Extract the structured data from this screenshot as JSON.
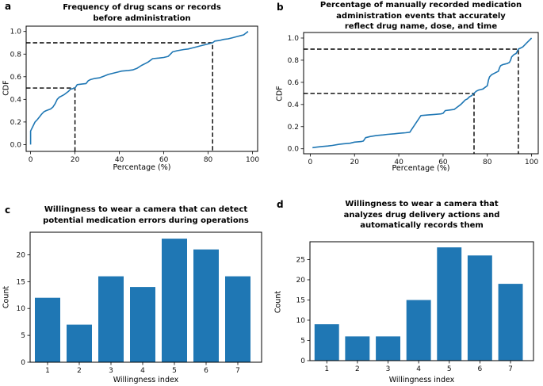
{
  "figure": {
    "background": "#ffffff",
    "accent_color": "#1f77b4",
    "guide_color": "#000000"
  },
  "chart_data": [
    {
      "id": "a",
      "panel_label": "a",
      "type": "line",
      "subtype": "cdf",
      "title": "Frequency of drug scans or records\nbefore administration",
      "xlabel": "Percentage (%)",
      "ylabel": "CDF",
      "xlim": [
        -2,
        102.3
      ],
      "ylim": [
        -0.06,
        1.047
      ],
      "xticks": [
        0,
        20,
        40,
        60,
        80,
        100
      ],
      "yticks": [
        0.0,
        0.2,
        0.4,
        0.6,
        0.8,
        1.0
      ],
      "grid": false,
      "legend": "none",
      "line_color": "#1f77b4",
      "guides": [
        {
          "cdf": 0.5,
          "percentage": 20
        },
        {
          "cdf": 0.9,
          "percentage": 82
        }
      ],
      "points": [
        [
          0,
          0
        ],
        [
          0,
          0.12
        ],
        [
          1,
          0.16
        ],
        [
          2,
          0.2
        ],
        [
          3,
          0.22
        ],
        [
          4,
          0.245
        ],
        [
          5,
          0.27
        ],
        [
          6,
          0.29
        ],
        [
          7,
          0.3
        ],
        [
          9,
          0.315
        ],
        [
          10,
          0.33
        ],
        [
          11,
          0.36
        ],
        [
          12,
          0.4
        ],
        [
          13,
          0.42
        ],
        [
          14,
          0.43
        ],
        [
          15,
          0.44
        ],
        [
          16,
          0.455
        ],
        [
          17,
          0.47
        ],
        [
          18,
          0.49
        ],
        [
          20,
          0.5
        ],
        [
          21,
          0.53
        ],
        [
          23,
          0.535
        ],
        [
          25,
          0.54
        ],
        [
          26,
          0.565
        ],
        [
          27,
          0.575
        ],
        [
          29,
          0.585
        ],
        [
          31,
          0.59
        ],
        [
          33,
          0.605
        ],
        [
          35,
          0.62
        ],
        [
          37,
          0.63
        ],
        [
          39,
          0.64
        ],
        [
          41,
          0.65
        ],
        [
          44,
          0.655
        ],
        [
          46,
          0.66
        ],
        [
          48,
          0.675
        ],
        [
          50,
          0.7
        ],
        [
          52,
          0.72
        ],
        [
          53,
          0.73
        ],
        [
          55,
          0.76
        ],
        [
          58,
          0.765
        ],
        [
          60,
          0.77
        ],
        [
          62,
          0.78
        ],
        [
          63,
          0.8
        ],
        [
          64,
          0.82
        ],
        [
          66,
          0.83
        ],
        [
          69,
          0.84
        ],
        [
          71,
          0.845
        ],
        [
          73,
          0.855
        ],
        [
          75,
          0.865
        ],
        [
          77,
          0.875
        ],
        [
          79,
          0.885
        ],
        [
          82,
          0.9
        ],
        [
          83,
          0.915
        ],
        [
          85,
          0.92
        ],
        [
          87,
          0.93
        ],
        [
          89,
          0.935
        ],
        [
          91,
          0.945
        ],
        [
          93,
          0.955
        ],
        [
          95,
          0.965
        ],
        [
          96,
          0.97
        ],
        [
          97,
          0.985
        ],
        [
          98,
          1.0
        ]
      ]
    },
    {
      "id": "b",
      "panel_label": "b",
      "type": "line",
      "subtype": "cdf",
      "title": "Percentage of manually recorded medication\nadministration events that accurately\nreflect drug name, dose, and time",
      "xlabel": "Percentage (%)",
      "ylabel": "CDF",
      "xlim": [
        -3,
        103
      ],
      "ylim": [
        -0.045,
        1.05
      ],
      "xticks": [
        0,
        20,
        40,
        60,
        80,
        100
      ],
      "yticks": [
        0.0,
        0.2,
        0.4,
        0.6,
        0.8,
        1.0
      ],
      "grid": false,
      "legend": "none",
      "line_color": "#1f77b4",
      "guides": [
        {
          "cdf": 0.5,
          "percentage": 74
        },
        {
          "cdf": 0.9,
          "percentage": 94
        }
      ],
      "points": [
        [
          1,
          0.01
        ],
        [
          3,
          0.015
        ],
        [
          5,
          0.02
        ],
        [
          8,
          0.025
        ],
        [
          10,
          0.03
        ],
        [
          13,
          0.04
        ],
        [
          15,
          0.045
        ],
        [
          18,
          0.05
        ],
        [
          20,
          0.06
        ],
        [
          23,
          0.065
        ],
        [
          24,
          0.07
        ],
        [
          25,
          0.1
        ],
        [
          27,
          0.11
        ],
        [
          30,
          0.12
        ],
        [
          33,
          0.125
        ],
        [
          35,
          0.13
        ],
        [
          38,
          0.135
        ],
        [
          40,
          0.14
        ],
        [
          43,
          0.145
        ],
        [
          45,
          0.15
        ],
        [
          46,
          0.18
        ],
        [
          48,
          0.24
        ],
        [
          50,
          0.3
        ],
        [
          53,
          0.305
        ],
        [
          56,
          0.31
        ],
        [
          59,
          0.315
        ],
        [
          60,
          0.32
        ],
        [
          61,
          0.345
        ],
        [
          63,
          0.35
        ],
        [
          65,
          0.355
        ],
        [
          66,
          0.37
        ],
        [
          68,
          0.4
        ],
        [
          69,
          0.42
        ],
        [
          70,
          0.44
        ],
        [
          71,
          0.45
        ],
        [
          72,
          0.47
        ],
        [
          73,
          0.48
        ],
        [
          74,
          0.5
        ],
        [
          75,
          0.52
        ],
        [
          76,
          0.53
        ],
        [
          77,
          0.535
        ],
        [
          78,
          0.54
        ],
        [
          79,
          0.555
        ],
        [
          80,
          0.57
        ],
        [
          80.5,
          0.62
        ],
        [
          81,
          0.65
        ],
        [
          82,
          0.67
        ],
        [
          83,
          0.68
        ],
        [
          84,
          0.69
        ],
        [
          85,
          0.7
        ],
        [
          85.5,
          0.73
        ],
        [
          86,
          0.75
        ],
        [
          87,
          0.76
        ],
        [
          88,
          0.765
        ],
        [
          89,
          0.77
        ],
        [
          90,
          0.78
        ],
        [
          90.5,
          0.8
        ],
        [
          91,
          0.83
        ],
        [
          92,
          0.85
        ],
        [
          93,
          0.86
        ],
        [
          93.5,
          0.88
        ],
        [
          94,
          0.9
        ],
        [
          95,
          0.91
        ],
        [
          96,
          0.92
        ],
        [
          97,
          0.94
        ],
        [
          98,
          0.96
        ],
        [
          99,
          0.98
        ],
        [
          100,
          1.0
        ]
      ]
    },
    {
      "id": "c",
      "panel_label": "c",
      "type": "bar",
      "title": "Willingness to wear a camera that can detect\npotential medication errors during operations",
      "xlabel": "Willingness index",
      "ylabel": "Count",
      "categories": [
        1,
        2,
        3,
        4,
        5,
        6,
        7
      ],
      "values": [
        12,
        7,
        16,
        14,
        23,
        21,
        16
      ],
      "xticks": [
        1,
        2,
        3,
        4,
        5,
        6,
        7
      ],
      "yticks": [
        0,
        5,
        10,
        15,
        20
      ],
      "xlim": [
        0.45,
        7.75
      ],
      "ylim": [
        0,
        24.2
      ],
      "grid": false,
      "legend": "none",
      "bar_color": "#1f77b4"
    },
    {
      "id": "d",
      "panel_label": "d",
      "type": "bar",
      "title": "Willingness to wear a camera that\nanalyzes drug delivery actions and\nautomatically records them",
      "xlabel": "Willingness index",
      "ylabel": "Count",
      "categories": [
        1,
        2,
        3,
        4,
        5,
        6,
        7
      ],
      "values": [
        9,
        6,
        6,
        15,
        28,
        26,
        19
      ],
      "xticks": [
        1,
        2,
        3,
        4,
        5,
        6,
        7
      ],
      "yticks": [
        0,
        5,
        10,
        15,
        20,
        25
      ],
      "xlim": [
        0.45,
        7.75
      ],
      "ylim": [
        0,
        29.4
      ],
      "grid": false,
      "legend": "none",
      "bar_color": "#1f77b4"
    }
  ]
}
